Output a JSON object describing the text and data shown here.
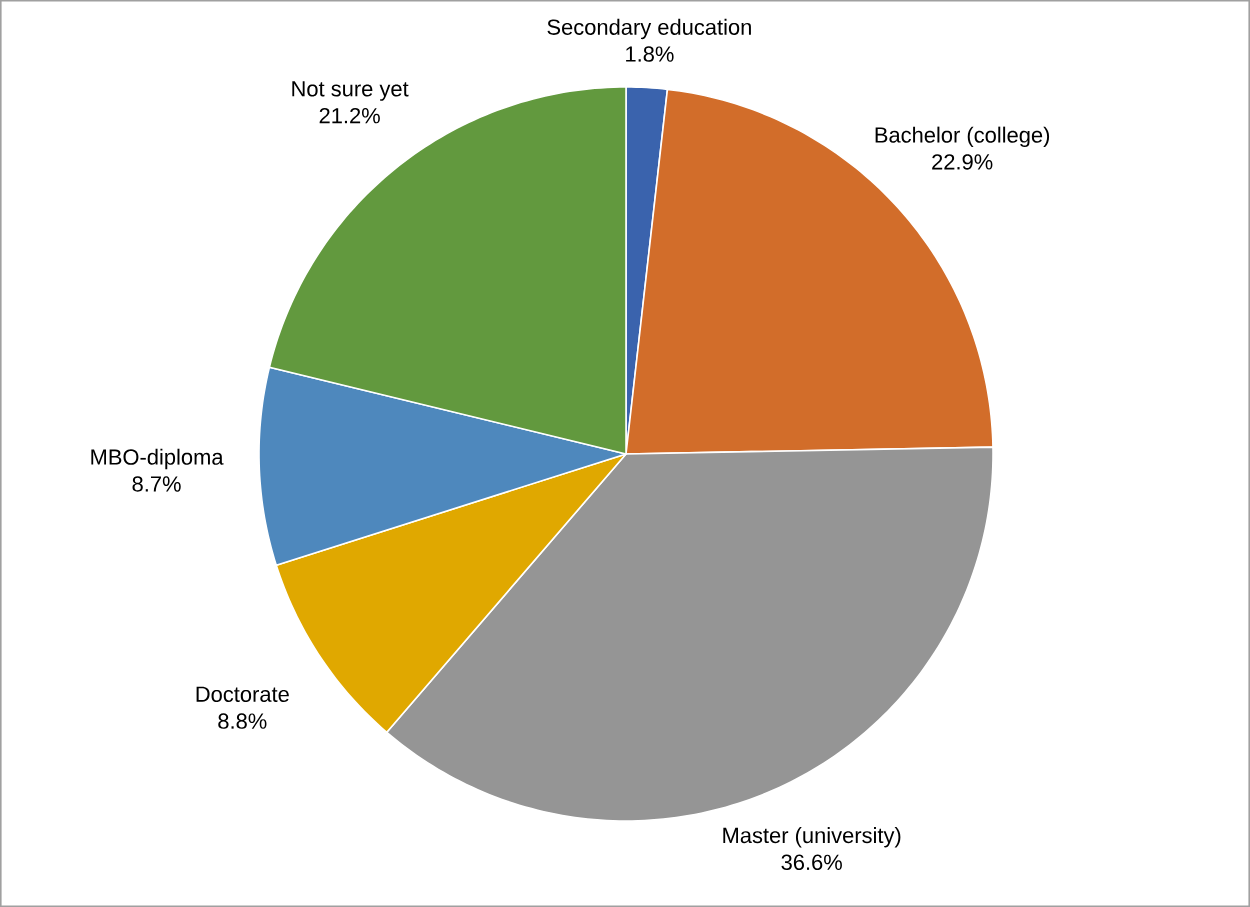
{
  "chart_data": {
    "type": "pie",
    "categories": [
      "Secondary education",
      "Bachelor (college)",
      "Master (university)",
      "Doctorate",
      "MBO-diploma",
      "Not sure yet"
    ],
    "values": [
      1.8,
      22.9,
      36.6,
      8.8,
      8.7,
      21.2
    ],
    "value_labels": [
      "1.8%",
      "22.9%",
      "36.6%",
      "8.8%",
      "8.7%",
      "21.2%"
    ],
    "colors": [
      "#3a63ad",
      "#d26d2a",
      "#959595",
      "#e0a800",
      "#4e88bd",
      "#62993e"
    ]
  }
}
